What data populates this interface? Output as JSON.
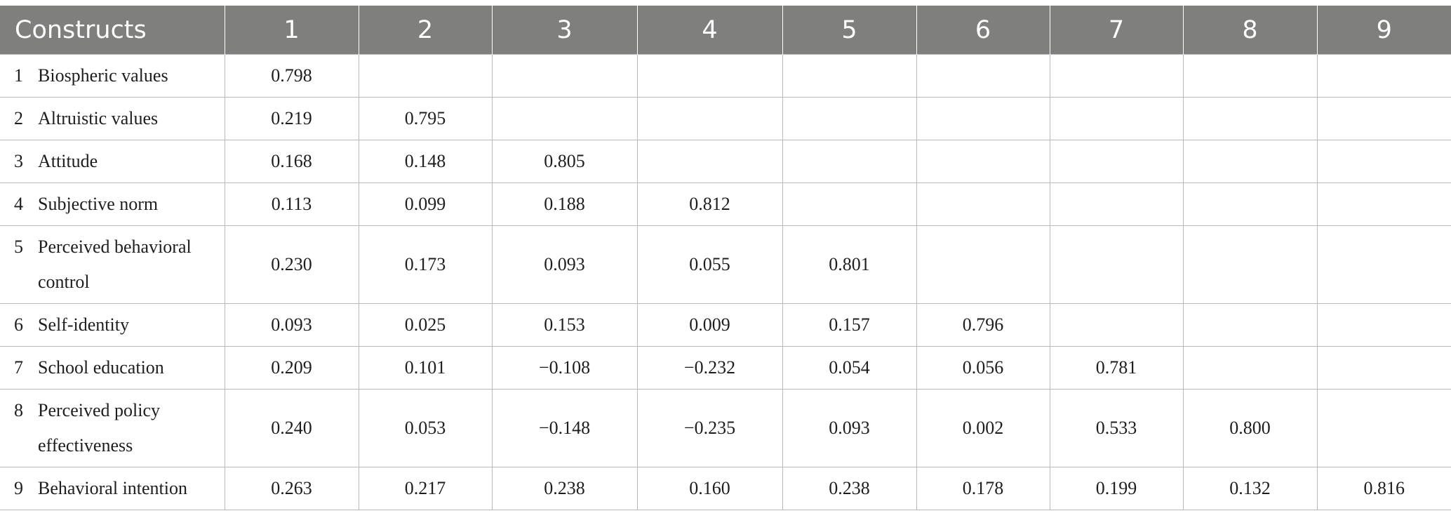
{
  "table": {
    "headers": [
      "Constructs",
      "1",
      "2",
      "3",
      "4",
      "5",
      "6",
      "7",
      "8",
      "9"
    ],
    "rows": [
      {
        "num": "1",
        "name": "Biospheric values",
        "values": [
          "0.798",
          "",
          "",
          "",
          "",
          "",
          "",
          "",
          ""
        ]
      },
      {
        "num": "2",
        "name": "Altruistic values",
        "values": [
          "0.219",
          "0.795",
          "",
          "",
          "",
          "",
          "",
          "",
          ""
        ]
      },
      {
        "num": "3",
        "name": "Attitude",
        "values": [
          "0.168",
          "0.148",
          "0.805",
          "",
          "",
          "",
          "",
          "",
          ""
        ]
      },
      {
        "num": "4",
        "name": "Subjective norm",
        "values": [
          "0.113",
          "0.099",
          "0.188",
          "0.812",
          "",
          "",
          "",
          "",
          ""
        ]
      },
      {
        "num": "5",
        "name": "Perceived behavioral control",
        "values": [
          "0.230",
          "0.173",
          "0.093",
          "0.055",
          "0.801",
          "",
          "",
          "",
          ""
        ]
      },
      {
        "num": "6",
        "name": "Self-identity",
        "values": [
          "0.093",
          "0.025",
          "0.153",
          "0.009",
          "0.157",
          "0.796",
          "",
          "",
          ""
        ]
      },
      {
        "num": "7",
        "name": "School education",
        "values": [
          "0.209",
          "0.101",
          "−0.108",
          "−0.232",
          "0.054",
          "0.056",
          "0.781",
          "",
          ""
        ]
      },
      {
        "num": "8",
        "name": "Perceived policy effectiveness",
        "values": [
          "0.240",
          "0.053",
          "−0.148",
          "−0.235",
          "0.093",
          "0.002",
          "0.533",
          "0.800",
          ""
        ]
      },
      {
        "num": "9",
        "name": "Behavioral intention",
        "values": [
          "0.263",
          "0.217",
          "0.238",
          "0.160",
          "0.238",
          "0.178",
          "0.199",
          "0.132",
          "0.816"
        ]
      }
    ]
  }
}
